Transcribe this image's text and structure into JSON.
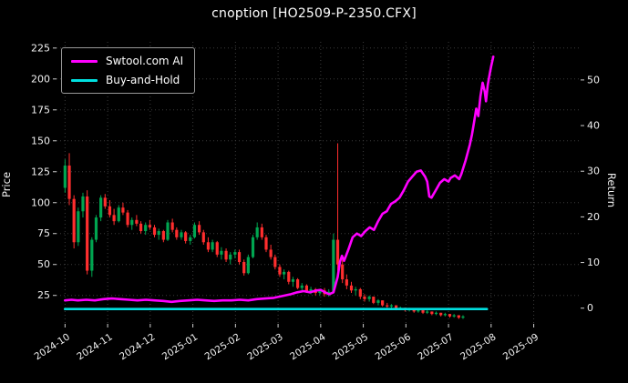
{
  "window": {
    "title": "cnoption [HO2509-P-2350.CFX]"
  },
  "chart_data": {
    "type": "candlestick+line",
    "title": "cnoption [HO2509-P-2350.CFX]",
    "background_color": "#000000",
    "text_color": "#f0f0f0",
    "grid": {
      "show": true,
      "color": "#3c3c3c",
      "style": "dotted"
    },
    "xlabel": "",
    "ylabel_left": "Price",
    "ylabel_right": "Return",
    "x_tick_labels": [
      "2024-10",
      "2024-11",
      "2024-12",
      "2025-01",
      "2025-02",
      "2025-03",
      "2025-04",
      "2025-05",
      "2025-06",
      "2025-07",
      "2025-08",
      "2025-09"
    ],
    "y_left_ticks": [
      25,
      50,
      75,
      100,
      125,
      150,
      175,
      200,
      225
    ],
    "y_right_ticks": [
      0,
      10,
      20,
      30,
      40,
      50
    ],
    "x_range": [
      -0.2,
      12.1
    ],
    "y_left_range": [
      2,
      230
    ],
    "right_axis_map": {
      "price_at_return_0": 14.7,
      "price_per_return_unit": 3.69
    },
    "legend": {
      "position": "upper-left",
      "entries": [
        {
          "label": "Swtool.com AI",
          "color": "#ff00ff"
        },
        {
          "label": "Buy-and-Hold",
          "color": "#00e0e0"
        }
      ]
    },
    "series": [
      {
        "name": "Swtool.com AI",
        "type": "line",
        "color": "#ff00ff",
        "width": 2.6,
        "points": [
          [
            0.0,
            21
          ],
          [
            0.15,
            21.5
          ],
          [
            0.3,
            21
          ],
          [
            0.5,
            21.5
          ],
          [
            0.7,
            21
          ],
          [
            0.9,
            22
          ],
          [
            1.1,
            22.5
          ],
          [
            1.3,
            22
          ],
          [
            1.5,
            21.5
          ],
          [
            1.7,
            21
          ],
          [
            1.9,
            21.5
          ],
          [
            2.1,
            21
          ],
          [
            2.3,
            20.5
          ],
          [
            2.5,
            19.8
          ],
          [
            2.7,
            20.5
          ],
          [
            2.9,
            21
          ],
          [
            3.1,
            21.5
          ],
          [
            3.3,
            21
          ],
          [
            3.5,
            20.5
          ],
          [
            3.7,
            21
          ],
          [
            3.9,
            21
          ],
          [
            4.1,
            21.5
          ],
          [
            4.3,
            21
          ],
          [
            4.5,
            22
          ],
          [
            4.7,
            22.5
          ],
          [
            4.9,
            23
          ],
          [
            5.1,
            24.5
          ],
          [
            5.3,
            26
          ],
          [
            5.45,
            27.5
          ],
          [
            5.6,
            28.5
          ],
          [
            5.75,
            27.5
          ],
          [
            5.9,
            29
          ],
          [
            6.0,
            29.5
          ],
          [
            6.1,
            27.5
          ],
          [
            6.2,
            26
          ],
          [
            6.3,
            27.5
          ],
          [
            6.4,
            40
          ],
          [
            6.45,
            52
          ],
          [
            6.5,
            57
          ],
          [
            6.55,
            53
          ],
          [
            6.65,
            62
          ],
          [
            6.75,
            72
          ],
          [
            6.85,
            75
          ],
          [
            6.95,
            73
          ],
          [
            7.05,
            77
          ],
          [
            7.15,
            80
          ],
          [
            7.25,
            78
          ],
          [
            7.35,
            85
          ],
          [
            7.45,
            91
          ],
          [
            7.55,
            93
          ],
          [
            7.65,
            99
          ],
          [
            7.75,
            101
          ],
          [
            7.85,
            104
          ],
          [
            7.95,
            110
          ],
          [
            8.05,
            117
          ],
          [
            8.15,
            121
          ],
          [
            8.25,
            125
          ],
          [
            8.35,
            126
          ],
          [
            8.45,
            121
          ],
          [
            8.5,
            117
          ],
          [
            8.55,
            105
          ],
          [
            8.6,
            104
          ],
          [
            8.7,
            110
          ],
          [
            8.8,
            116
          ],
          [
            8.9,
            119
          ],
          [
            9.0,
            117
          ],
          [
            9.05,
            120
          ],
          [
            9.15,
            122
          ],
          [
            9.25,
            119
          ],
          [
            9.3,
            123
          ],
          [
            9.4,
            134
          ],
          [
            9.5,
            147
          ],
          [
            9.55,
            155
          ],
          [
            9.6,
            165
          ],
          [
            9.65,
            176
          ],
          [
            9.7,
            170
          ],
          [
            9.75,
            186
          ],
          [
            9.8,
            197
          ],
          [
            9.85,
            190
          ],
          [
            9.88,
            182
          ],
          [
            9.92,
            195
          ],
          [
            9.96,
            203
          ],
          [
            10.0,
            210
          ],
          [
            10.05,
            218
          ]
        ]
      },
      {
        "name": "Buy-and-Hold",
        "type": "line",
        "color": "#00e0e0",
        "width": 2.6,
        "points": [
          [
            0.0,
            14
          ],
          [
            9.9,
            14
          ]
        ]
      }
    ],
    "candles": {
      "up_color": "#00a550",
      "down_color": "#ff2e2e",
      "ohlc": [
        [
          0.0,
          112,
          135,
          108,
          130
        ],
        [
          0.1,
          130,
          140,
          98,
          103
        ],
        [
          0.21,
          103,
          106,
          63,
          68
        ],
        [
          0.31,
          68,
          96,
          65,
          93
        ],
        [
          0.42,
          93,
          108,
          88,
          105
        ],
        [
          0.52,
          105,
          110,
          42,
          45
        ],
        [
          0.63,
          45,
          72,
          40,
          70
        ],
        [
          0.73,
          70,
          90,
          68,
          88
        ],
        [
          0.84,
          88,
          106,
          85,
          104
        ],
        [
          0.94,
          104,
          107,
          95,
          97
        ],
        [
          1.05,
          97,
          102,
          88,
          90
        ],
        [
          1.15,
          90,
          95,
          82,
          85
        ],
        [
          1.26,
          85,
          98,
          84,
          96
        ],
        [
          1.36,
          96,
          100,
          90,
          92
        ],
        [
          1.47,
          92,
          94,
          80,
          82
        ],
        [
          1.57,
          82,
          88,
          78,
          86
        ],
        [
          1.68,
          86,
          90,
          81,
          83
        ],
        [
          1.78,
          83,
          85,
          75,
          77
        ],
        [
          1.89,
          77,
          84,
          74,
          82
        ],
        [
          1.99,
          82,
          86,
          78,
          80
        ],
        [
          2.1,
          80,
          82,
          72,
          74
        ],
        [
          2.2,
          74,
          79,
          70,
          77
        ],
        [
          2.31,
          77,
          78,
          68,
          70
        ],
        [
          2.41,
          70,
          86,
          69,
          84
        ],
        [
          2.52,
          84,
          87,
          76,
          78
        ],
        [
          2.62,
          78,
          80,
          70,
          72
        ],
        [
          2.73,
          72,
          78,
          70,
          76
        ],
        [
          2.83,
          76,
          77,
          67,
          69
        ],
        [
          2.94,
          69,
          74,
          66,
          72
        ],
        [
          3.04,
          72,
          84,
          71,
          82
        ],
        [
          3.15,
          82,
          85,
          74,
          76
        ],
        [
          3.25,
          76,
          78,
          66,
          68
        ],
        [
          3.36,
          68,
          72,
          60,
          62
        ],
        [
          3.46,
          62,
          70,
          60,
          68
        ],
        [
          3.57,
          68,
          69,
          56,
          58
        ],
        [
          3.67,
          58,
          64,
          54,
          61
        ],
        [
          3.78,
          61,
          63,
          52,
          54
        ],
        [
          3.88,
          54,
          60,
          50,
          58
        ],
        [
          3.99,
          58,
          62,
          55,
          60
        ],
        [
          4.09,
          60,
          62,
          50,
          52
        ],
        [
          4.2,
          52,
          54,
          41,
          43
        ],
        [
          4.3,
          43,
          58,
          42,
          56
        ],
        [
          4.41,
          56,
          74,
          55,
          72
        ],
        [
          4.51,
          72,
          84,
          70,
          80
        ],
        [
          4.62,
          80,
          83,
          70,
          72
        ],
        [
          4.72,
          72,
          74,
          60,
          62
        ],
        [
          4.83,
          62,
          66,
          54,
          56
        ],
        [
          4.93,
          56,
          58,
          46,
          48
        ],
        [
          5.04,
          48,
          50,
          40,
          42
        ],
        [
          5.14,
          42,
          46,
          38,
          44
        ],
        [
          5.25,
          44,
          45,
          34,
          36
        ],
        [
          5.35,
          36,
          40,
          32,
          38
        ],
        [
          5.46,
          38,
          39,
          30,
          31
        ],
        [
          5.56,
          31,
          35,
          29,
          33
        ],
        [
          5.67,
          33,
          34,
          27,
          28
        ],
        [
          5.77,
          28,
          32,
          26,
          30
        ],
        [
          5.88,
          30,
          31,
          25,
          27
        ],
        [
          5.98,
          27,
          30,
          25,
          29
        ],
        [
          6.09,
          29,
          31,
          24,
          26
        ],
        [
          6.19,
          26,
          30,
          24,
          28
        ],
        [
          6.3,
          28,
          75,
          27,
          70
        ],
        [
          6.4,
          70,
          148,
          45,
          50
        ],
        [
          6.51,
          50,
          55,
          35,
          38
        ],
        [
          6.61,
          38,
          42,
          30,
          33
        ],
        [
          6.72,
          33,
          36,
          27,
          29
        ],
        [
          6.82,
          29,
          32,
          25,
          30
        ],
        [
          6.93,
          30,
          31,
          22,
          24
        ],
        [
          7.03,
          24,
          26,
          20,
          22
        ],
        [
          7.14,
          22,
          25,
          20,
          24
        ],
        [
          7.24,
          24,
          24,
          18,
          19
        ],
        [
          7.35,
          19,
          22,
          17,
          21
        ],
        [
          7.45,
          21,
          21,
          16,
          17
        ],
        [
          7.56,
          17,
          19,
          15,
          16
        ],
        [
          7.66,
          16,
          18,
          14,
          17
        ],
        [
          7.77,
          17,
          17,
          13,
          14
        ],
        [
          7.87,
          14,
          16,
          13,
          15
        ],
        [
          7.98,
          15,
          15,
          12,
          13
        ],
        [
          8.08,
          13,
          15,
          12,
          14
        ],
        [
          8.19,
          14,
          14,
          11,
          12
        ],
        [
          8.29,
          12,
          14,
          11,
          13
        ],
        [
          8.4,
          13,
          13,
          10,
          11
        ],
        [
          8.5,
          11,
          13,
          10,
          12
        ],
        [
          8.61,
          12,
          12,
          9,
          10
        ],
        [
          8.71,
          10,
          12,
          9,
          11
        ],
        [
          8.82,
          11,
          11,
          8,
          9
        ],
        [
          8.92,
          9,
          11,
          8,
          10
        ],
        [
          9.03,
          10,
          10,
          7,
          8
        ],
        [
          9.13,
          8,
          10,
          7,
          9
        ],
        [
          9.24,
          9,
          9,
          6,
          7
        ],
        [
          9.34,
          7,
          9,
          6,
          8
        ]
      ]
    }
  }
}
